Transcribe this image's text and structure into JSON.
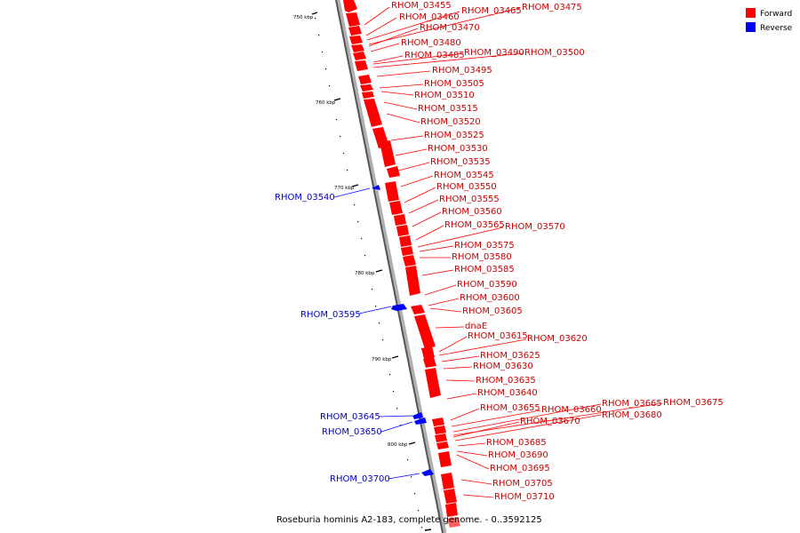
{
  "legend": {
    "forward": {
      "label": "Forward",
      "color": "#ff0000"
    },
    "reverse": {
      "label": "Reverse",
      "color": "#0000ff"
    }
  },
  "caption": "Roseburia hominis A2-183, complete genome. - 0..3592125",
  "ticks": [
    "750 kbp",
    "760 kbp",
    "770 kbp",
    "780 kbp",
    "790 kbp",
    "800 kbp"
  ],
  "forward_labels": [
    "RHOM_03455",
    "RHOM_03460",
    "RHOM_03465",
    "RHOM_03475",
    "RHOM_03470",
    "RHOM_03480",
    "RHOM_03485",
    "RHOM_03490",
    "RHOM_03500",
    "RHOM_03495",
    "RHOM_03505",
    "RHOM_03510",
    "RHOM_03515",
    "RHOM_03520",
    "RHOM_03525",
    "RHOM_03530",
    "RHOM_03535",
    "RHOM_03545",
    "RHOM_03550",
    "RHOM_03555",
    "RHOM_03560",
    "RHOM_03565",
    "RHOM_03570",
    "RHOM_03575",
    "RHOM_03580",
    "RHOM_03585",
    "RHOM_03590",
    "RHOM_03600",
    "RHOM_03605",
    "dnaE",
    "RHOM_03615",
    "RHOM_03620",
    "RHOM_03625",
    "RHOM_03630",
    "RHOM_03635",
    "RHOM_03640",
    "RHOM_03655",
    "RHOM_03660",
    "RHOM_03665",
    "RHOM_03675",
    "RHOM_03670",
    "RHOM_03680",
    "RHOM_03685",
    "RHOM_03690",
    "RHOM_03695",
    "RHOM_03705",
    "RHOM_03710"
  ],
  "reverse_labels": [
    "RHOM_03540",
    "RHOM_03595",
    "RHOM_03645",
    "RHOM_03650",
    "RHOM_03700"
  ]
}
